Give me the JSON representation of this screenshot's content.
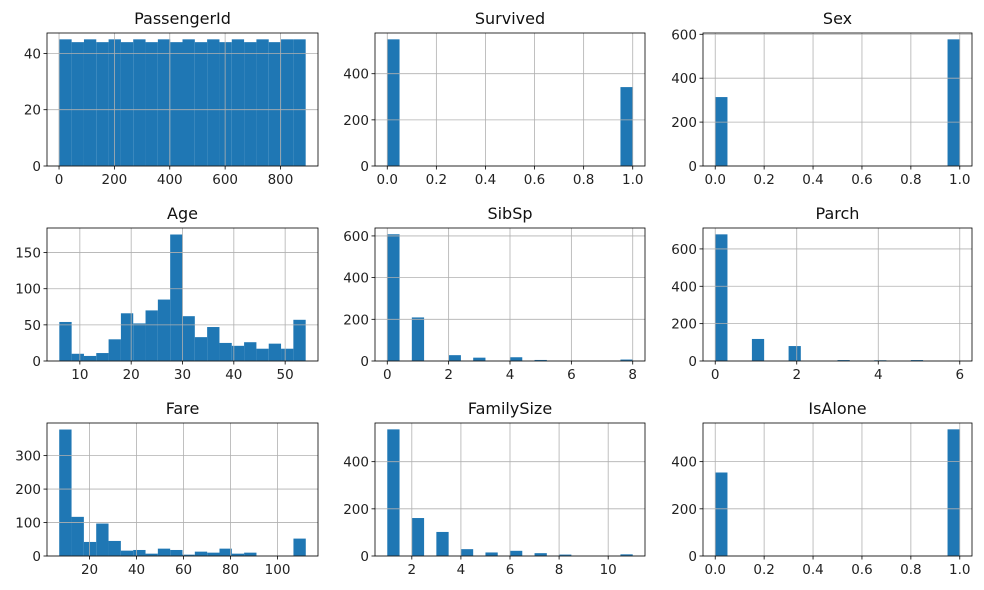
{
  "colors": {
    "bar": "#1f77b4",
    "grid": "#b0b0b0",
    "axis": "#000000"
  },
  "chart_data": [
    {
      "type": "bar",
      "title": "PassengerId",
      "bins": 20,
      "range": [
        1,
        891
      ],
      "xlim": [
        -43.5,
        935.5
      ],
      "ylim": [
        0,
        47.25
      ],
      "grid": true,
      "xticks": [
        0,
        200,
        400,
        600,
        800
      ],
      "xtick_labels": [
        "0",
        "200",
        "400",
        "600",
        "800"
      ],
      "yticks": [
        0,
        20,
        40
      ],
      "ytick_labels": [
        "0",
        "20",
        "40"
      ],
      "values": [
        45,
        44,
        45,
        44,
        45,
        44,
        45,
        44,
        45,
        44,
        45,
        44,
        45,
        44,
        45,
        44,
        45,
        44,
        45,
        45
      ]
    },
    {
      "type": "bar",
      "title": "Survived",
      "bins": 20,
      "range": [
        0,
        1
      ],
      "xlim": [
        -0.05,
        1.05
      ],
      "ylim": [
        0,
        576.45
      ],
      "grid": true,
      "xticks": [
        0,
        0.2,
        0.4,
        0.6,
        0.8,
        1
      ],
      "xtick_labels": [
        "0.0",
        "0.2",
        "0.4",
        "0.6",
        "0.8",
        "1.0"
      ],
      "yticks": [
        0,
        200,
        400
      ],
      "ytick_labels": [
        "0",
        "200",
        "400"
      ],
      "values": [
        549,
        0,
        0,
        0,
        0,
        0,
        0,
        0,
        0,
        0,
        0,
        0,
        0,
        0,
        0,
        0,
        0,
        0,
        0,
        342
      ]
    },
    {
      "type": "bar",
      "title": "Sex",
      "bins": 20,
      "range": [
        0,
        1
      ],
      "xlim": [
        -0.05,
        1.05
      ],
      "ylim": [
        0,
        605.85
      ],
      "grid": true,
      "xticks": [
        0,
        0.2,
        0.4,
        0.6,
        0.8,
        1
      ],
      "xtick_labels": [
        "0.0",
        "0.2",
        "0.4",
        "0.6",
        "0.8",
        "1.0"
      ],
      "yticks": [
        0,
        200,
        400,
        600
      ],
      "ytick_labels": [
        "0",
        "200",
        "400",
        "600"
      ],
      "values": [
        314,
        0,
        0,
        0,
        0,
        0,
        0,
        0,
        0,
        0,
        0,
        0,
        0,
        0,
        0,
        0,
        0,
        0,
        0,
        577
      ]
    },
    {
      "type": "bar",
      "title": "Age",
      "bins": 20,
      "range": [
        6,
        54
      ],
      "xlim": [
        3.6,
        56.4
      ],
      "ylim": [
        0,
        184
      ],
      "grid": true,
      "xticks": [
        10,
        20,
        30,
        40,
        50
      ],
      "xtick_labels": [
        "10",
        "20",
        "30",
        "40",
        "50"
      ],
      "yticks": [
        0,
        50,
        100,
        150
      ],
      "ytick_labels": [
        "0",
        "50",
        "100",
        "150"
      ],
      "values": [
        54,
        10,
        7,
        11,
        30,
        66,
        52,
        70,
        85,
        175,
        62,
        33,
        47,
        25,
        21,
        26,
        17,
        24,
        17,
        57
      ]
    },
    {
      "type": "bar",
      "title": "SibSp",
      "bins": 20,
      "range": [
        0,
        8
      ],
      "xlim": [
        -0.4,
        8.4
      ],
      "ylim": [
        0,
        638
      ],
      "grid": true,
      "xticks": [
        0,
        2,
        4,
        6,
        8
      ],
      "xtick_labels": [
        "0",
        "2",
        "4",
        "6",
        "8"
      ],
      "yticks": [
        0,
        200,
        400,
        600
      ],
      "ytick_labels": [
        "0",
        "200",
        "400",
        "600"
      ],
      "values": [
        608,
        0,
        209,
        0,
        0,
        28,
        0,
        16,
        0,
        0,
        18,
        0,
        5,
        0,
        0,
        0,
        0,
        0,
        0,
        7
      ]
    },
    {
      "type": "bar",
      "title": "Parch",
      "bins": 20,
      "range": [
        0,
        6
      ],
      "xlim": [
        -0.3,
        6.3
      ],
      "ylim": [
        0,
        712
      ],
      "grid": true,
      "xticks": [
        0,
        2,
        4,
        6
      ],
      "xtick_labels": [
        "0",
        "2",
        "4",
        "6"
      ],
      "yticks": [
        0,
        200,
        400,
        600
      ],
      "ytick_labels": [
        "0",
        "200",
        "400",
        "600"
      ],
      "values": [
        678,
        0,
        0,
        118,
        0,
        0,
        80,
        0,
        0,
        0,
        5,
        0,
        0,
        4,
        0,
        0,
        5,
        0,
        0,
        1
      ]
    },
    {
      "type": "bar",
      "title": "Fare",
      "bins": 20,
      "range": [
        7.1,
        112
      ],
      "xlim": [
        1.9,
        117.2
      ],
      "ylim": [
        0,
        397.5
      ],
      "grid": true,
      "xticks": [
        20,
        40,
        60,
        80,
        100
      ],
      "xtick_labels": [
        "20",
        "40",
        "60",
        "80",
        "100"
      ],
      "yticks": [
        0,
        100,
        200,
        300
      ],
      "ytick_labels": [
        "0",
        "100",
        "200",
        "300"
      ],
      "values": [
        378,
        117,
        42,
        97,
        45,
        16,
        18,
        7,
        22,
        18,
        4,
        13,
        10,
        22,
        7,
        10,
        0,
        0,
        0,
        52
      ]
    },
    {
      "type": "bar",
      "title": "FamilySize",
      "bins": 20,
      "range": [
        1,
        11
      ],
      "xlim": [
        0.5,
        11.5
      ],
      "ylim": [
        0,
        564
      ],
      "grid": true,
      "xticks": [
        2,
        4,
        6,
        8,
        10
      ],
      "xtick_labels": [
        "2",
        "4",
        "6",
        "8",
        "10"
      ],
      "yticks": [
        0,
        200,
        400
      ],
      "ytick_labels": [
        "0",
        "200",
        "400"
      ],
      "values": [
        537,
        0,
        161,
        0,
        102,
        0,
        29,
        0,
        15,
        0,
        22,
        0,
        12,
        0,
        6,
        0,
        0,
        0,
        0,
        7
      ]
    },
    {
      "type": "bar",
      "title": "IsAlone",
      "bins": 20,
      "range": [
        0,
        1
      ],
      "xlim": [
        -0.05,
        1.05
      ],
      "ylim": [
        0,
        563.85
      ],
      "grid": true,
      "xticks": [
        0,
        0.2,
        0.4,
        0.6,
        0.8,
        1
      ],
      "xtick_labels": [
        "0.0",
        "0.2",
        "0.4",
        "0.6",
        "0.8",
        "1.0"
      ],
      "yticks": [
        0,
        200,
        400
      ],
      "ytick_labels": [
        "0",
        "200",
        "400"
      ],
      "values": [
        354,
        0,
        0,
        0,
        0,
        0,
        0,
        0,
        0,
        0,
        0,
        0,
        0,
        0,
        0,
        0,
        0,
        0,
        0,
        537
      ]
    }
  ]
}
